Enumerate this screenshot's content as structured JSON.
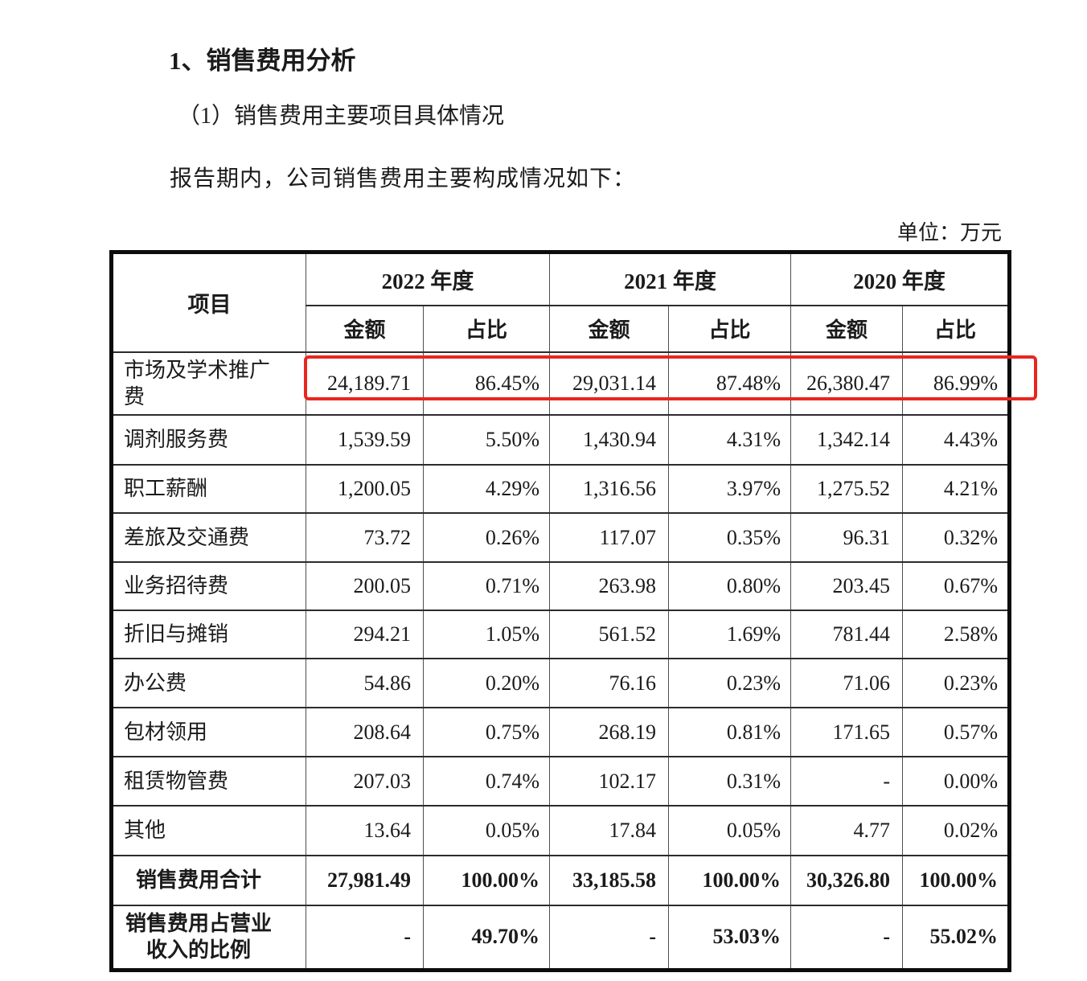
{
  "page": {
    "heading1": "1、销售费用分析",
    "heading2": "（1）销售费用主要项目具体情况",
    "paragraph": "报告期内，公司销售费用主要构成情况如下：",
    "unit_label": "单位：万元"
  },
  "table": {
    "highlight_color": "#e8261e",
    "header": {
      "item": "项目",
      "year_groups": [
        "2022 年度",
        "2021 年度",
        "2020 年度"
      ],
      "sub_headers": [
        "金额",
        "占比"
      ]
    },
    "rows": [
      {
        "label": "市场及学术推广费",
        "cells": [
          "24,189.71",
          "86.45%",
          "29,031.14",
          "87.48%",
          "26,380.47",
          "86.99%"
        ],
        "highlighted": true
      },
      {
        "label": "调剂服务费",
        "cells": [
          "1,539.59",
          "5.50%",
          "1,430.94",
          "4.31%",
          "1,342.14",
          "4.43%"
        ]
      },
      {
        "label": "职工薪酬",
        "cells": [
          "1,200.05",
          "4.29%",
          "1,316.56",
          "3.97%",
          "1,275.52",
          "4.21%"
        ]
      },
      {
        "label": "差旅及交通费",
        "cells": [
          "73.72",
          "0.26%",
          "117.07",
          "0.35%",
          "96.31",
          "0.32%"
        ]
      },
      {
        "label": "业务招待费",
        "cells": [
          "200.05",
          "0.71%",
          "263.98",
          "0.80%",
          "203.45",
          "0.67%"
        ]
      },
      {
        "label": "折旧与摊销",
        "cells": [
          "294.21",
          "1.05%",
          "561.52",
          "1.69%",
          "781.44",
          "2.58%"
        ]
      },
      {
        "label": "办公费",
        "cells": [
          "54.86",
          "0.20%",
          "76.16",
          "0.23%",
          "71.06",
          "0.23%"
        ]
      },
      {
        "label": "包材领用",
        "cells": [
          "208.64",
          "0.75%",
          "268.19",
          "0.81%",
          "171.65",
          "0.57%"
        ]
      },
      {
        "label": "租赁物管费",
        "cells": [
          "207.03",
          "0.74%",
          "102.17",
          "0.31%",
          "-",
          "0.00%"
        ]
      },
      {
        "label": "其他",
        "cells": [
          "13.64",
          "0.05%",
          "17.84",
          "0.05%",
          "4.77",
          "0.02%"
        ]
      },
      {
        "label": "销售费用合计",
        "cells": [
          "27,981.49",
          "100.00%",
          "33,185.58",
          "100.00%",
          "30,326.80",
          "100.00%"
        ],
        "bold": true,
        "center_label": true
      },
      {
        "label": "销售费用占营业收入的比例",
        "cells": [
          "-",
          "49.70%",
          "-",
          "53.03%",
          "-",
          "55.02%"
        ],
        "bold": true,
        "center_label": true
      }
    ]
  }
}
